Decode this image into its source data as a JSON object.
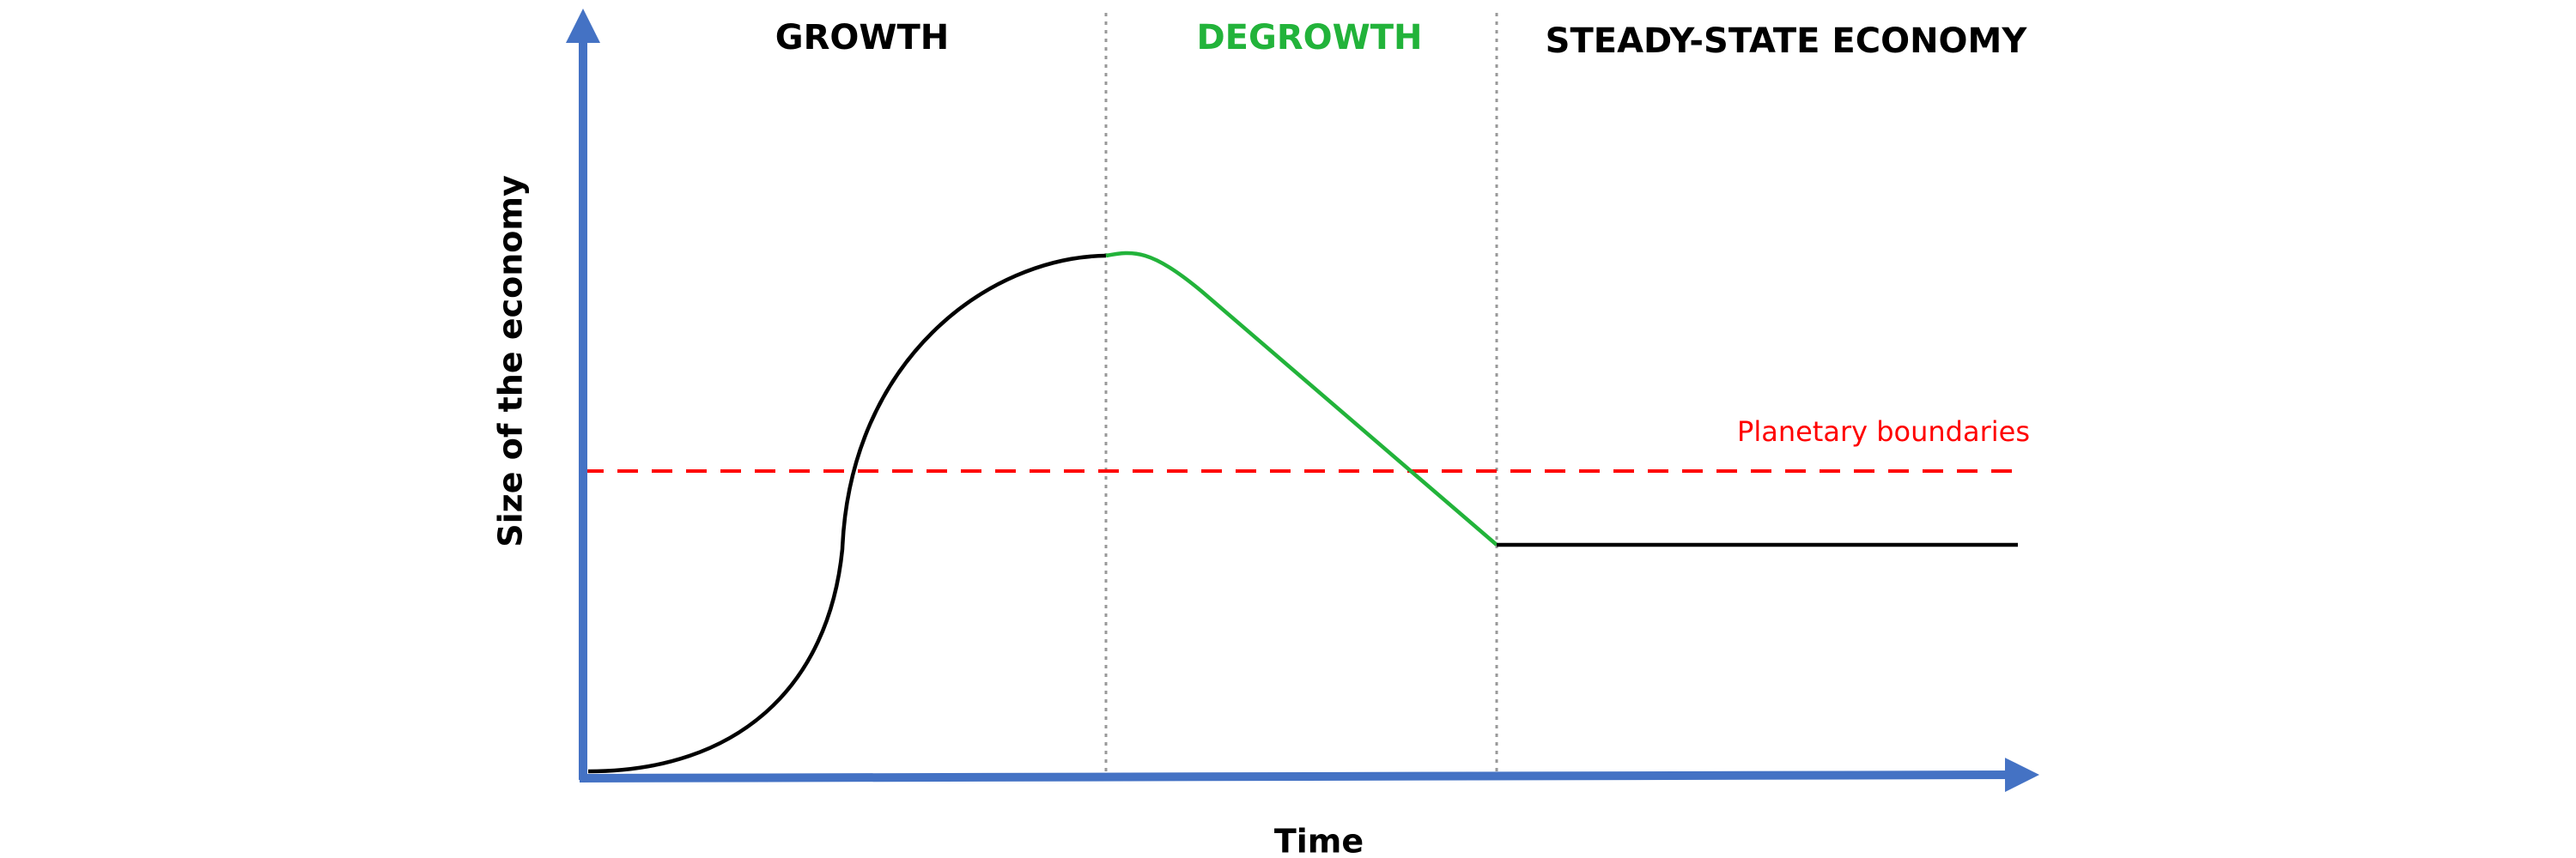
{
  "phases": [
    {
      "label": "GROWTH"
    },
    {
      "label": "DEGROWTH"
    },
    {
      "label": "STEADY-STATE ECONOMY"
    }
  ],
  "axes": {
    "y_label": "Size of the economy",
    "x_label": "Time"
  },
  "boundary": {
    "label": "Planetary boundaries"
  }
}
